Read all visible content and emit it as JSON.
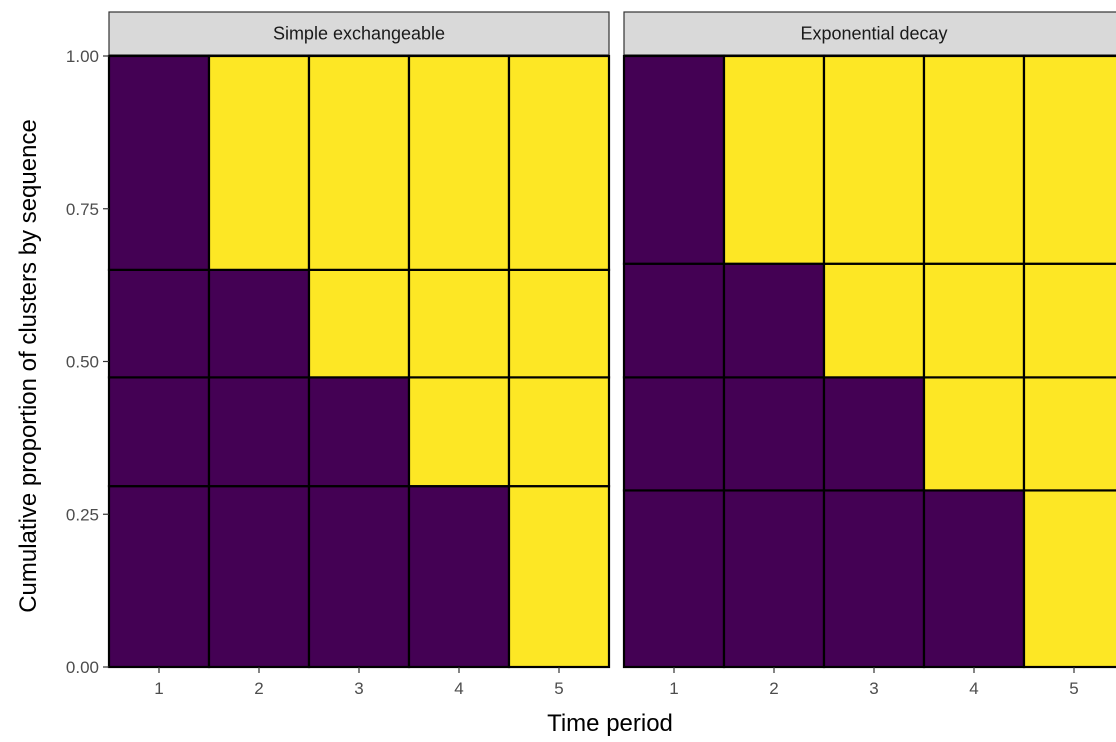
{
  "chart_data": {
    "type": "heatmap",
    "xlabel": "Time period",
    "ylabel": "Cumulative proportion of clusters by sequence",
    "x_ticks": [
      "1",
      "2",
      "3",
      "4",
      "5"
    ],
    "y_ticks": [
      "0.00",
      "0.25",
      "0.50",
      "0.75",
      "1.00"
    ],
    "ylim": [
      0,
      1
    ],
    "colors": {
      "control": "#440154",
      "intervention": "#fde725",
      "cell_border": "#000000",
      "strip_bg": "#d9d9d9"
    },
    "panels": [
      {
        "title": "Simple exchangeable",
        "sequence_boundaries": [
          0,
          0.296,
          0.474,
          0.65,
          1.0
        ],
        "sequences": [
          {
            "start_period": 5
          },
          {
            "start_period": 4
          },
          {
            "start_period": 3
          },
          {
            "start_period": 2
          }
        ]
      },
      {
        "title": "Exponential decay",
        "sequence_boundaries": [
          0,
          0.289,
          0.474,
          0.66,
          1.0
        ],
        "sequences": [
          {
            "start_period": 5
          },
          {
            "start_period": 4
          },
          {
            "start_period": 3
          },
          {
            "start_period": 2
          }
        ]
      }
    ]
  }
}
